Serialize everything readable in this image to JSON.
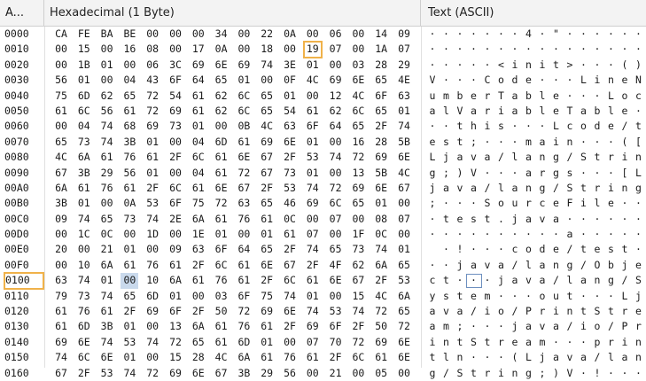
{
  "header": {
    "address_label": "A...",
    "hex_label": "Hexadecimal (1 Byte)",
    "text_label": "Text (ASCII)"
  },
  "rows": [
    {
      "addr": "0000",
      "hex": [
        "CA",
        "FE",
        "BA",
        "BE",
        "00",
        "00",
        "00",
        "34",
        "00",
        "22",
        "0A",
        "00",
        "06",
        "00",
        "14",
        "09"
      ],
      "ascii": [
        "·",
        "·",
        "·",
        "·",
        "·",
        "·",
        "·",
        "4",
        "·",
        "\"",
        "·",
        "·",
        "·",
        "·",
        "·",
        "·"
      ]
    },
    {
      "addr": "0010",
      "hex": [
        "00",
        "15",
        "00",
        "16",
        "08",
        "00",
        "17",
        "0A",
        "00",
        "18",
        "00",
        "19",
        "07",
        "00",
        "1A",
        "07"
      ],
      "ascii": [
        "·",
        "·",
        "·",
        "·",
        "·",
        "·",
        "·",
        "·",
        "·",
        "·",
        "·",
        "·",
        "·",
        "·",
        "·",
        "·"
      ]
    },
    {
      "addr": "0020",
      "hex": [
        "00",
        "1B",
        "01",
        "00",
        "06",
        "3C",
        "69",
        "6E",
        "69",
        "74",
        "3E",
        "01",
        "00",
        "03",
        "28",
        "29"
      ],
      "ascii": [
        "·",
        "·",
        "·",
        "·",
        "·",
        "<",
        "i",
        "n",
        "i",
        "t",
        ">",
        "·",
        "·",
        "·",
        "(",
        ")"
      ]
    },
    {
      "addr": "0030",
      "hex": [
        "56",
        "01",
        "00",
        "04",
        "43",
        "6F",
        "64",
        "65",
        "01",
        "00",
        "0F",
        "4C",
        "69",
        "6E",
        "65",
        "4E"
      ],
      "ascii": [
        "V",
        "·",
        "·",
        "·",
        "C",
        "o",
        "d",
        "e",
        "·",
        "·",
        "·",
        "L",
        "i",
        "n",
        "e",
        "N"
      ]
    },
    {
      "addr": "0040",
      "hex": [
        "75",
        "6D",
        "62",
        "65",
        "72",
        "54",
        "61",
        "62",
        "6C",
        "65",
        "01",
        "00",
        "12",
        "4C",
        "6F",
        "63"
      ],
      "ascii": [
        "u",
        "m",
        "b",
        "e",
        "r",
        "T",
        "a",
        "b",
        "l",
        "e",
        "·",
        "·",
        "·",
        "L",
        "o",
        "c"
      ]
    },
    {
      "addr": "0050",
      "hex": [
        "61",
        "6C",
        "56",
        "61",
        "72",
        "69",
        "61",
        "62",
        "6C",
        "65",
        "54",
        "61",
        "62",
        "6C",
        "65",
        "01"
      ],
      "ascii": [
        "a",
        "l",
        "V",
        "a",
        "r",
        "i",
        "a",
        "b",
        "l",
        "e",
        "T",
        "a",
        "b",
        "l",
        "e",
        "·"
      ]
    },
    {
      "addr": "0060",
      "hex": [
        "00",
        "04",
        "74",
        "68",
        "69",
        "73",
        "01",
        "00",
        "0B",
        "4C",
        "63",
        "6F",
        "64",
        "65",
        "2F",
        "74"
      ],
      "ascii": [
        "·",
        "·",
        "t",
        "h",
        "i",
        "s",
        "·",
        "·",
        "·",
        "L",
        "c",
        "o",
        "d",
        "e",
        "/",
        "t"
      ]
    },
    {
      "addr": "0070",
      "hex": [
        "65",
        "73",
        "74",
        "3B",
        "01",
        "00",
        "04",
        "6D",
        "61",
        "69",
        "6E",
        "01",
        "00",
        "16",
        "28",
        "5B"
      ],
      "ascii": [
        "e",
        "s",
        "t",
        ";",
        "·",
        "·",
        "·",
        "m",
        "a",
        "i",
        "n",
        "·",
        "·",
        "·",
        "(",
        "["
      ]
    },
    {
      "addr": "0080",
      "hex": [
        "4C",
        "6A",
        "61",
        "76",
        "61",
        "2F",
        "6C",
        "61",
        "6E",
        "67",
        "2F",
        "53",
        "74",
        "72",
        "69",
        "6E"
      ],
      "ascii": [
        "L",
        "j",
        "a",
        "v",
        "a",
        "/",
        "l",
        "a",
        "n",
        "g",
        "/",
        "S",
        "t",
        "r",
        "i",
        "n"
      ]
    },
    {
      "addr": "0090",
      "hex": [
        "67",
        "3B",
        "29",
        "56",
        "01",
        "00",
        "04",
        "61",
        "72",
        "67",
        "73",
        "01",
        "00",
        "13",
        "5B",
        "4C"
      ],
      "ascii": [
        "g",
        ";",
        ")",
        "V",
        "·",
        "·",
        "·",
        "a",
        "r",
        "g",
        "s",
        "·",
        "·",
        "·",
        "[",
        "L"
      ]
    },
    {
      "addr": "00A0",
      "hex": [
        "6A",
        "61",
        "76",
        "61",
        "2F",
        "6C",
        "61",
        "6E",
        "67",
        "2F",
        "53",
        "74",
        "72",
        "69",
        "6E",
        "67"
      ],
      "ascii": [
        "j",
        "a",
        "v",
        "a",
        "/",
        "l",
        "a",
        "n",
        "g",
        "/",
        "S",
        "t",
        "r",
        "i",
        "n",
        "g"
      ]
    },
    {
      "addr": "00B0",
      "hex": [
        "3B",
        "01",
        "00",
        "0A",
        "53",
        "6F",
        "75",
        "72",
        "63",
        "65",
        "46",
        "69",
        "6C",
        "65",
        "01",
        "00"
      ],
      "ascii": [
        ";",
        "·",
        "·",
        "·",
        "S",
        "o",
        "u",
        "r",
        "c",
        "e",
        "F",
        "i",
        "l",
        "e",
        "·",
        "·"
      ]
    },
    {
      "addr": "00C0",
      "hex": [
        "09",
        "74",
        "65",
        "73",
        "74",
        "2E",
        "6A",
        "61",
        "76",
        "61",
        "0C",
        "00",
        "07",
        "00",
        "08",
        "07"
      ],
      "ascii": [
        "·",
        "t",
        "e",
        "s",
        "t",
        ".",
        "j",
        "a",
        "v",
        "a",
        "·",
        "·",
        "·",
        "·",
        "·",
        "·"
      ]
    },
    {
      "addr": "00D0",
      "hex": [
        "00",
        "1C",
        "0C",
        "00",
        "1D",
        "00",
        "1E",
        "01",
        "00",
        "01",
        "61",
        "07",
        "00",
        "1F",
        "0C",
        "00"
      ],
      "ascii": [
        "·",
        "·",
        "·",
        "·",
        "·",
        "·",
        "·",
        "·",
        "·",
        "·",
        "a",
        "·",
        "·",
        "·",
        "·",
        "·"
      ]
    },
    {
      "addr": "00E0",
      "hex": [
        "20",
        "00",
        "21",
        "01",
        "00",
        "09",
        "63",
        "6F",
        "64",
        "65",
        "2F",
        "74",
        "65",
        "73",
        "74",
        "01"
      ],
      "ascii": [
        " ",
        "·",
        "!",
        "·",
        "·",
        "·",
        "c",
        "o",
        "d",
        "e",
        "/",
        "t",
        "e",
        "s",
        "t",
        "·"
      ]
    },
    {
      "addr": "00F0",
      "hex": [
        "00",
        "10",
        "6A",
        "61",
        "76",
        "61",
        "2F",
        "6C",
        "61",
        "6E",
        "67",
        "2F",
        "4F",
        "62",
        "6A",
        "65"
      ],
      "ascii": [
        "·",
        "·",
        "j",
        "a",
        "v",
        "a",
        "/",
        "l",
        "a",
        "n",
        "g",
        "/",
        "O",
        "b",
        "j",
        "e"
      ]
    },
    {
      "addr": "0100",
      "hex": [
        "63",
        "74",
        "01",
        "00",
        "10",
        "6A",
        "61",
        "76",
        "61",
        "2F",
        "6C",
        "61",
        "6E",
        "67",
        "2F",
        "53"
      ],
      "ascii": [
        "c",
        "t",
        "·",
        "·",
        "·",
        "j",
        "a",
        "v",
        "a",
        "/",
        "l",
        "a",
        "n",
        "g",
        "/",
        "S"
      ]
    },
    {
      "addr": "0110",
      "hex": [
        "79",
        "73",
        "74",
        "65",
        "6D",
        "01",
        "00",
        "03",
        "6F",
        "75",
        "74",
        "01",
        "00",
        "15",
        "4C",
        "6A"
      ],
      "ascii": [
        "y",
        "s",
        "t",
        "e",
        "m",
        "·",
        "·",
        "·",
        "o",
        "u",
        "t",
        "·",
        "·",
        "·",
        "L",
        "j"
      ]
    },
    {
      "addr": "0120",
      "hex": [
        "61",
        "76",
        "61",
        "2F",
        "69",
        "6F",
        "2F",
        "50",
        "72",
        "69",
        "6E",
        "74",
        "53",
        "74",
        "72",
        "65"
      ],
      "ascii": [
        "a",
        "v",
        "a",
        "/",
        "i",
        "o",
        "/",
        "P",
        "r",
        "i",
        "n",
        "t",
        "S",
        "t",
        "r",
        "e"
      ]
    },
    {
      "addr": "0130",
      "hex": [
        "61",
        "6D",
        "3B",
        "01",
        "00",
        "13",
        "6A",
        "61",
        "76",
        "61",
        "2F",
        "69",
        "6F",
        "2F",
        "50",
        "72"
      ],
      "ascii": [
        "a",
        "m",
        ";",
        "·",
        "·",
        "·",
        "j",
        "a",
        "v",
        "a",
        "/",
        "i",
        "o",
        "/",
        "P",
        "r"
      ]
    },
    {
      "addr": "0140",
      "hex": [
        "69",
        "6E",
        "74",
        "53",
        "74",
        "72",
        "65",
        "61",
        "6D",
        "01",
        "00",
        "07",
        "70",
        "72",
        "69",
        "6E"
      ],
      "ascii": [
        "i",
        "n",
        "t",
        "S",
        "t",
        "r",
        "e",
        "a",
        "m",
        "·",
        "·",
        "·",
        "p",
        "r",
        "i",
        "n"
      ]
    },
    {
      "addr": "0150",
      "hex": [
        "74",
        "6C",
        "6E",
        "01",
        "00",
        "15",
        "28",
        "4C",
        "6A",
        "61",
        "76",
        "61",
        "2F",
        "6C",
        "61",
        "6E"
      ],
      "ascii": [
        "t",
        "l",
        "n",
        "·",
        "·",
        "·",
        "(",
        "L",
        "j",
        "a",
        "v",
        "a",
        "/",
        "l",
        "a",
        "n"
      ]
    },
    {
      "addr": "0160",
      "hex": [
        "67",
        "2F",
        "53",
        "74",
        "72",
        "69",
        "6E",
        "67",
        "3B",
        "29",
        "56",
        "00",
        "21",
        "00",
        "05",
        "00"
      ],
      "ascii": [
        "g",
        "/",
        "S",
        "t",
        "r",
        "i",
        "n",
        "g",
        ";",
        ")",
        "V",
        "·",
        "!",
        "·",
        "·",
        "·"
      ]
    }
  ],
  "selection": {
    "hover_row": 1,
    "hover_col": 11,
    "cursor_row": 16,
    "cursor_col": 3,
    "highlight_address_row": 16
  }
}
